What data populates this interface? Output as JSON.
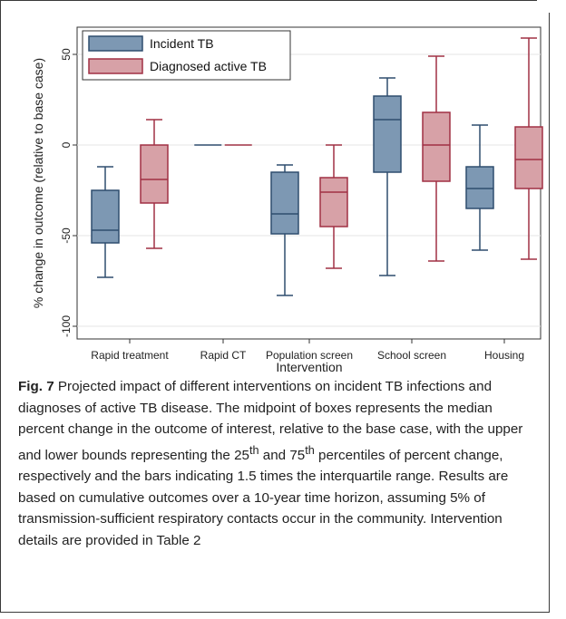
{
  "chart_data": {
    "type": "box",
    "xlabel": "Intervention",
    "ylabel": "% change in outcome (relative to base case)",
    "ylim": [
      -110,
      62
    ],
    "yticks": [
      -100,
      -50,
      0,
      50
    ],
    "categories": [
      "Rapid treatment",
      "Rapid CT",
      "Population screen",
      "School screen",
      "Housing"
    ],
    "grid": "horizontal",
    "legend_position": "top-left",
    "series": [
      {
        "name": "Incident TB",
        "fill": "#7d98b3",
        "stroke": "#2f4d6e",
        "boxes": [
          {
            "min": -73,
            "q1": -54,
            "median": -47,
            "q3": -25,
            "max": -12
          },
          {
            "min": 0,
            "q1": 0,
            "median": 0,
            "q3": 0,
            "max": 0
          },
          {
            "min": -83,
            "q1": -49,
            "median": -38,
            "q3": -15,
            "max": -11
          },
          {
            "min": -72,
            "q1": -15,
            "median": 14,
            "q3": 27,
            "max": 37
          },
          {
            "min": -58,
            "q1": -35,
            "median": -24,
            "q3": -12,
            "max": 11
          }
        ]
      },
      {
        "name": "Diagnosed active TB",
        "fill": "#d7a1a7",
        "stroke": "#a03044",
        "boxes": [
          {
            "min": -57,
            "q1": -32,
            "median": -19,
            "q3": 0,
            "max": 14
          },
          {
            "min": 0,
            "q1": 0,
            "median": 0,
            "q3": 0,
            "max": 0
          },
          {
            "min": -68,
            "q1": -45,
            "median": -26,
            "q3": -18,
            "max": 0
          },
          {
            "min": -64,
            "q1": -20,
            "median": 0,
            "q3": 18,
            "max": 49
          },
          {
            "min": -63,
            "q1": -24,
            "median": -8,
            "q3": 10,
            "max": 59
          }
        ]
      }
    ]
  },
  "caption": {
    "label": "Fig. 7",
    "text_1": " Projected impact of different interventions on incident TB infections and diagnoses of active TB disease. The midpoint of boxes represents the median percent change in the outcome of interest, relative to the base case, with the upper and lower bounds representing the 25",
    "sup_1": "th",
    "text_2": " and 75",
    "sup_2": "th",
    "text_3": " percentiles of percent change, respectively and the bars indicating 1.5 times the interquartile range. Results are based on cumulative outcomes over a 10-year time horizon, assuming 5% of transmission-sufficient respiratory contacts occur in the community. Intervention details are provided in Table 2"
  }
}
